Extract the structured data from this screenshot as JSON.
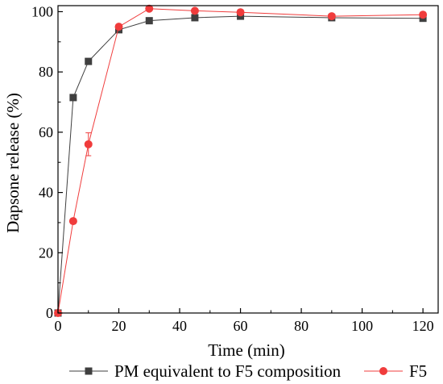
{
  "chart_data": {
    "type": "line",
    "title": "",
    "xlabel": "Time (min)",
    "ylabel": "Dapsone release (%)",
    "xlim": [
      0,
      125
    ],
    "ylim": [
      0,
      102
    ],
    "x_ticks": [
      0,
      20,
      40,
      60,
      80,
      100,
      120
    ],
    "y_ticks": [
      0,
      20,
      40,
      60,
      80,
      100
    ],
    "grid": false,
    "legend_position": "bottom",
    "series": [
      {
        "name": "PM equivalent to F5 composition",
        "marker": "square",
        "color": "#3f3f3f",
        "x": [
          0,
          5,
          10,
          20,
          30,
          45,
          60,
          90,
          120
        ],
        "y": [
          0,
          71.5,
          83.5,
          94.0,
          97.0,
          98.0,
          98.5,
          98.0,
          97.8
        ],
        "error": [
          0,
          0.8,
          0.5,
          0.5,
          0.4,
          0.4,
          0.3,
          0.3,
          0.3
        ]
      },
      {
        "name": "F5",
        "marker": "circle",
        "color": "#f03c3c",
        "x": [
          0,
          5,
          10,
          20,
          30,
          45,
          60,
          90,
          120
        ],
        "y": [
          0,
          30.5,
          56.0,
          95.0,
          101.0,
          100.3,
          99.8,
          98.5,
          99.0
        ],
        "error": [
          0,
          0.5,
          3.8,
          0.6,
          0.4,
          0.4,
          0.4,
          0.4,
          0.4
        ]
      }
    ]
  }
}
